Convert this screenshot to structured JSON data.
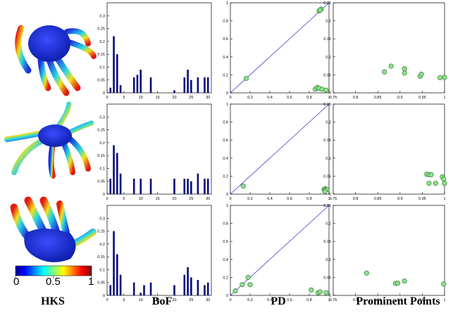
{
  "column_labels": {
    "hks": "HKS",
    "bof": "BoF",
    "pd": "PD",
    "prominent": "Prominent Points"
  },
  "colorbar": {
    "min": "0",
    "mid": "0.5",
    "max": "1"
  },
  "colors": {
    "mesh_body": "#1c2fe0",
    "bar": "#0a0f7a",
    "pd_line": "#3a3acd",
    "point_fill": "#8fe08f",
    "point_stroke": "#2f7a2f"
  },
  "chart_data": [
    {
      "type": "bar",
      "panel": "BoF row 1",
      "x": [
        1,
        2,
        3,
        4,
        5,
        6,
        7,
        8,
        9,
        10,
        11,
        12,
        13,
        14,
        15,
        16,
        17,
        18,
        19,
        20,
        21,
        22,
        23,
        24,
        25,
        26,
        27,
        28,
        29,
        30
      ],
      "values": [
        0.02,
        0.22,
        0.15,
        0.03,
        0,
        0,
        0,
        0.06,
        0.07,
        0.09,
        0,
        0,
        0.06,
        0,
        0,
        0,
        0,
        0,
        0,
        0.01,
        0,
        0,
        0.06,
        0.09,
        0.05,
        0,
        0.06,
        0,
        0.06,
        0.06
      ],
      "xlim": [
        0,
        31
      ],
      "ylim": [
        0,
        0.35
      ],
      "xticks": [
        "0",
        "5",
        "10",
        "15",
        "20",
        "25",
        "30"
      ],
      "yticks": [
        "0",
        "0.05",
        "0.1",
        "0.15",
        "0.2",
        "0.25",
        "0.3"
      ]
    },
    {
      "type": "bar",
      "panel": "BoF row 2",
      "x": [
        1,
        2,
        3,
        4,
        5,
        6,
        7,
        8,
        9,
        10,
        11,
        12,
        13,
        14,
        15,
        16,
        17,
        18,
        19,
        20,
        21,
        22,
        23,
        24,
        25,
        26,
        27,
        28,
        29,
        30
      ],
      "values": [
        0.06,
        0.19,
        0.16,
        0.08,
        0,
        0,
        0,
        0.06,
        0,
        0.06,
        0,
        0,
        0.06,
        0,
        0,
        0,
        0,
        0,
        0,
        0.06,
        0,
        0,
        0.06,
        0.06,
        0.05,
        0,
        0.08,
        0,
        0.06,
        0.06
      ],
      "xlim": [
        0,
        31
      ],
      "ylim": [
        0,
        0.35
      ],
      "xticks": [
        "0",
        "5",
        "10",
        "15",
        "20",
        "25",
        "30"
      ],
      "yticks": [
        "0",
        "0.05",
        "0.1",
        "0.15",
        "0.2",
        "0.25",
        "0.3"
      ]
    },
    {
      "type": "bar",
      "panel": "BoF row 3",
      "x": [
        1,
        2,
        3,
        4,
        5,
        6,
        7,
        8,
        9,
        10,
        11,
        12,
        13,
        14,
        15,
        16,
        17,
        18,
        19,
        20,
        21,
        22,
        23,
        24,
        25,
        26,
        27,
        28,
        29,
        30
      ],
      "values": [
        0.04,
        0.25,
        0.16,
        0.08,
        0,
        0,
        0,
        0.05,
        0,
        0.01,
        0.04,
        0,
        0.05,
        0,
        0,
        0,
        0,
        0,
        0,
        0.04,
        0,
        0,
        0.08,
        0.11,
        0.07,
        0,
        0.06,
        0,
        0.04,
        0.05
      ],
      "xlim": [
        0,
        31
      ],
      "ylim": [
        0,
        0.35
      ],
      "xticks": [
        "0",
        "5",
        "10",
        "15",
        "20",
        "25",
        "30"
      ],
      "yticks": [
        "0",
        "0.05",
        "0.1",
        "0.15",
        "0.2",
        "0.25",
        "0.3"
      ]
    },
    {
      "type": "scatter",
      "panel": "PD row 1",
      "points": [
        [
          0.16,
          0.16
        ],
        [
          0.9,
          0.91
        ],
        [
          0.92,
          0.93
        ],
        [
          0.91,
          0.92
        ],
        [
          0.86,
          0.04
        ],
        [
          0.88,
          0.06
        ],
        [
          0.9,
          0.05
        ],
        [
          0.93,
          0.04
        ],
        [
          0.97,
          0.03
        ]
      ],
      "diagonal": true,
      "xlim": [
        0,
        1
      ],
      "ylim": [
        0,
        1
      ],
      "xticks": [
        "0",
        "0.2",
        "0.4",
        "0.6",
        "0.8",
        "1"
      ],
      "yticks": [
        "0",
        "0.2",
        "0.4",
        "0.6",
        "0.8",
        "1"
      ]
    },
    {
      "type": "scatter",
      "panel": "PD row 2",
      "points": [
        [
          0.13,
          0.09
        ],
        [
          0.95,
          0.05
        ],
        [
          0.96,
          0.06
        ],
        [
          0.97,
          0.05
        ],
        [
          0.98,
          0.05
        ],
        [
          0.96,
          0.03
        ]
      ],
      "diagonal": true,
      "xlim": [
        0,
        1
      ],
      "ylim": [
        0,
        1
      ],
      "xticks": [
        "0",
        "0.2",
        "0.4",
        "0.6",
        "0.8",
        "1"
      ],
      "yticks": [
        "0",
        "0.2",
        "0.4",
        "0.6",
        "0.8",
        "1"
      ]
    },
    {
      "type": "scatter",
      "panel": "PD row 3",
      "points": [
        [
          0.05,
          0.05
        ],
        [
          0.12,
          0.12
        ],
        [
          0.18,
          0.2
        ],
        [
          0.2,
          0.12
        ],
        [
          0.82,
          0.06
        ],
        [
          0.89,
          0.03
        ],
        [
          0.91,
          0.04
        ],
        [
          0.97,
          0.03
        ]
      ],
      "diagonal": true,
      "xlim": [
        0,
        1
      ],
      "ylim": [
        0,
        1
      ],
      "xticks": [
        "0",
        "0.2",
        "0.4",
        "0.6",
        "0.8",
        "1"
      ],
      "yticks": [
        "0",
        "0.2",
        "0.4",
        "0.6",
        "0.8",
        "1"
      ]
    },
    {
      "type": "scatter",
      "panel": "Prominent Points row 1",
      "points": [
        [
          0.865,
          0.058
        ],
        [
          0.88,
          0.074
        ],
        [
          0.91,
          0.067
        ],
        [
          0.91,
          0.055
        ],
        [
          0.945,
          0.046
        ],
        [
          0.948,
          0.052
        ],
        [
          0.99,
          0.042
        ],
        [
          1.0,
          0.043
        ]
      ],
      "xlim": [
        0.75,
        1
      ],
      "ylim": [
        0,
        0.25
      ],
      "xticks": [
        "0.75",
        "0.8",
        "0.85",
        "0.9",
        "0.95",
        "1"
      ],
      "yticks": [
        "0",
        "0.05",
        "0.1",
        "0.15",
        "0.2",
        "0.25"
      ]
    },
    {
      "type": "scatter",
      "panel": "Prominent Points row 2",
      "points": [
        [
          0.96,
          0.055
        ],
        [
          0.965,
          0.054
        ],
        [
          0.97,
          0.054
        ],
        [
          0.965,
          0.03
        ],
        [
          0.98,
          0.03
        ],
        [
          0.995,
          0.048
        ],
        [
          0.998,
          0.042
        ],
        [
          1.0,
          0.03
        ]
      ],
      "xlim": [
        0.75,
        1
      ],
      "ylim": [
        0,
        0.25
      ],
      "xticks": [
        "0.75",
        "0.8",
        "0.85",
        "0.9",
        "0.95",
        "1"
      ],
      "yticks": [
        "0",
        "0.05",
        "0.1",
        "0.15",
        "0.2",
        "0.25"
      ]
    },
    {
      "type": "scatter",
      "panel": "Prominent Points row 3",
      "points": [
        [
          0.825,
          0.062
        ],
        [
          0.89,
          0.033
        ],
        [
          0.895,
          0.034
        ],
        [
          0.91,
          0.04
        ],
        [
          0.998,
          0.032
        ]
      ],
      "xlim": [
        0.75,
        1
      ],
      "ylim": [
        0,
        0.25
      ],
      "xticks": [
        "0.75",
        "0.8",
        "0.85",
        "0.9",
        "0.95",
        "1"
      ],
      "yticks": [
        "0",
        "0.05",
        "0.1",
        "0.15",
        "0.2",
        "0.25"
      ]
    }
  ]
}
